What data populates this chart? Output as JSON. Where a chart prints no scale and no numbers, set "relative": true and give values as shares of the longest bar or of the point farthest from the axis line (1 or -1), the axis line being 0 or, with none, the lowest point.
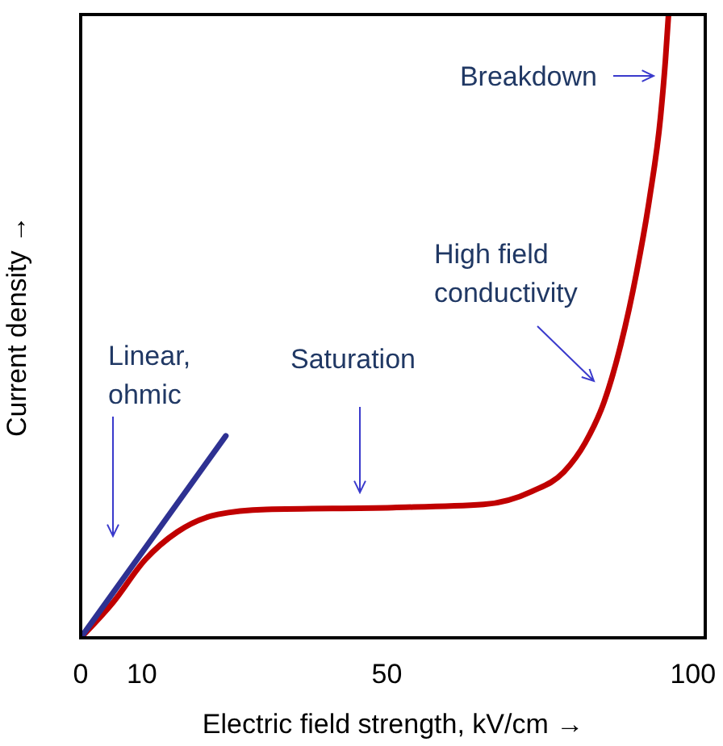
{
  "chart_data": {
    "type": "line",
    "xlabel": "Electric field strength, kV/cm →",
    "ylabel": "Current density →",
    "relative": true,
    "xlim": [
      0,
      102
    ],
    "xticks": [
      0,
      10,
      50,
      100
    ],
    "series": [
      {
        "color": "#c00000",
        "x": [
          0,
          5.3,
          10.5,
          15.8,
          22.4,
          30.3,
          51,
          65.8,
          73.7,
          78.9,
          82.4,
          85.5,
          88.2,
          90.8,
          92.9,
          94.7,
          95.5,
          96
        ],
        "values": [
          0,
          0.057,
          0.125,
          0.17,
          0.198,
          0.206,
          0.209,
          0.214,
          0.235,
          0.266,
          0.313,
          0.379,
          0.47,
          0.587,
          0.705,
          0.836,
          0.927,
          1.0
        ]
      },
      {
        "color": "#2e3192",
        "x": [
          0,
          23.7
        ],
        "values": [
          0,
          0.324
        ]
      }
    ],
    "annotations": [
      "Linear,\nohmic",
      "Saturation",
      "High field\nconductivity",
      "Breakdown"
    ]
  }
}
